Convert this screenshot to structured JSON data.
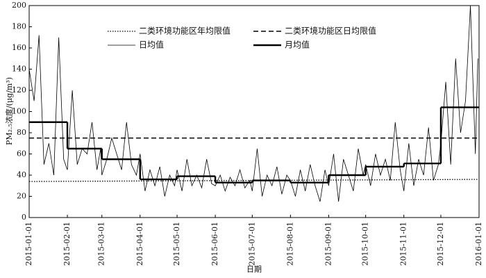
{
  "chart_data": {
    "type": "line",
    "ylabel": "PM₂.₅浓度/(μg/m³)",
    "xlabel": "日期",
    "xlim": [
      "2015-01-01",
      "2016-01-01"
    ],
    "xticks": [
      "2015-01-01",
      "2015-02-01",
      "2015-03-01",
      "2015-04-01",
      "2015-05-01",
      "2015-06-01",
      "2015-07-01",
      "2015-08-01",
      "2015-09-01",
      "2015-10-01",
      "2015-11-01",
      "2015-12-01",
      "2016-01-01"
    ],
    "ylim": [
      0,
      200
    ],
    "yticks": [
      0,
      20,
      40,
      60,
      80,
      100,
      120,
      140,
      160,
      180,
      200
    ],
    "series": [
      {
        "name": "二类环境功能区年均限值",
        "style": "dotted",
        "color": "#000000",
        "x": [
          "2015-01-01",
          "2016-01-01"
        ],
        "values": [
          34,
          36
        ]
      },
      {
        "name": "二类环境功能区日均限值",
        "style": "dashed",
        "color": "#000000",
        "x": [
          "2015-01-01",
          "2016-01-01"
        ],
        "values": [
          75,
          75
        ]
      },
      {
        "name": "日均值",
        "style": "thin",
        "color": "#000000",
        "x": [
          "2015-01-01",
          "2015-01-05",
          "2015-01-09",
          "2015-01-13",
          "2015-01-17",
          "2015-01-21",
          "2015-01-25",
          "2015-01-29",
          "2015-02-01",
          "2015-02-05",
          "2015-02-09",
          "2015-02-13",
          "2015-02-17",
          "2015-02-21",
          "2015-02-25",
          "2015-02-28",
          "2015-03-01",
          "2015-03-05",
          "2015-03-09",
          "2015-03-13",
          "2015-03-17",
          "2015-03-21",
          "2015-03-25",
          "2015-03-29",
          "2015-04-01",
          "2015-04-05",
          "2015-04-09",
          "2015-04-13",
          "2015-04-17",
          "2015-04-21",
          "2015-04-25",
          "2015-04-29",
          "2015-05-01",
          "2015-05-05",
          "2015-05-09",
          "2015-05-13",
          "2015-05-17",
          "2015-05-21",
          "2015-05-25",
          "2015-05-29",
          "2015-06-01",
          "2015-06-05",
          "2015-06-09",
          "2015-06-13",
          "2015-06-17",
          "2015-06-21",
          "2015-06-25",
          "2015-06-29",
          "2015-07-01",
          "2015-07-05",
          "2015-07-09",
          "2015-07-13",
          "2015-07-17",
          "2015-07-21",
          "2015-07-25",
          "2015-07-29",
          "2015-08-01",
          "2015-08-05",
          "2015-08-09",
          "2015-08-13",
          "2015-08-17",
          "2015-08-21",
          "2015-08-25",
          "2015-08-29",
          "2015-09-01",
          "2015-09-05",
          "2015-09-09",
          "2015-09-13",
          "2015-09-17",
          "2015-09-21",
          "2015-09-25",
          "2015-09-29",
          "2015-10-01",
          "2015-10-05",
          "2015-10-09",
          "2015-10-13",
          "2015-10-17",
          "2015-10-21",
          "2015-10-25",
          "2015-10-29",
          "2015-11-01",
          "2015-11-05",
          "2015-11-09",
          "2015-11-13",
          "2015-11-17",
          "2015-11-21",
          "2015-11-25",
          "2015-11-29",
          "2015-12-01",
          "2015-12-05",
          "2015-12-09",
          "2015-12-13",
          "2015-12-17",
          "2015-12-21",
          "2015-12-25",
          "2015-12-29",
          "2015-12-31"
        ],
        "values": [
          140,
          110,
          172,
          50,
          70,
          40,
          170,
          55,
          45,
          120,
          50,
          65,
          60,
          90,
          45,
          65,
          40,
          55,
          75,
          60,
          45,
          90,
          50,
          40,
          60,
          25,
          45,
          30,
          48,
          20,
          40,
          30,
          45,
          25,
          55,
          30,
          40,
          28,
          55,
          32,
          30,
          40,
          25,
          38,
          30,
          45,
          28,
          35,
          25,
          65,
          20,
          40,
          30,
          48,
          22,
          40,
          35,
          20,
          45,
          25,
          50,
          30,
          15,
          45,
          30,
          60,
          15,
          55,
          40,
          25,
          65,
          40,
          50,
          30,
          60,
          40,
          55,
          35,
          90,
          45,
          25,
          70,
          30,
          55,
          40,
          85,
          35,
          50,
          70,
          128,
          50,
          150,
          80,
          110,
          200,
          60,
          150
        ]
      },
      {
        "name": "月均值",
        "style": "thick",
        "color": "#000000",
        "x": [
          "2015-01-01",
          "2015-02-01",
          "2015-03-01",
          "2015-04-01",
          "2015-05-01",
          "2015-06-01",
          "2015-07-01",
          "2015-08-01",
          "2015-09-01",
          "2015-10-01",
          "2015-11-01",
          "2015-12-01"
        ],
        "values": [
          90,
          65,
          55,
          36,
          39,
          33,
          35,
          33,
          40,
          48,
          51,
          104
        ]
      }
    ]
  }
}
